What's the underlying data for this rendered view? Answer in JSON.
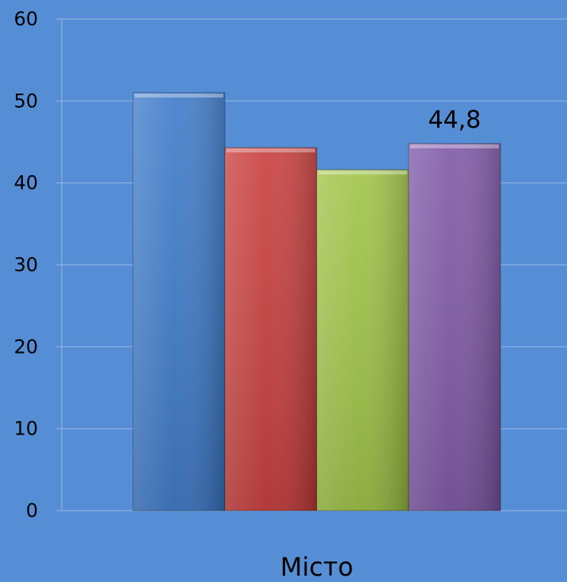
{
  "chart_data": {
    "type": "bar",
    "categories": [
      "Місто"
    ],
    "series": [
      {
        "values": [
          51
        ],
        "color": "#3a78c9"
      },
      {
        "values": [
          44.3
        ],
        "color": "#c73a39"
      },
      {
        "values": [
          41.6
        ],
        "color": "#9dc242"
      },
      {
        "values": [
          44.8
        ],
        "color": "#7c55a5"
      }
    ],
    "data_labels": [
      {
        "series_index": 3,
        "category_index": 0,
        "text": "44,8"
      }
    ],
    "y_ticks": [
      "0",
      "10",
      "20",
      "30",
      "40",
      "50",
      "60"
    ],
    "ylim": [
      0,
      60
    ],
    "grid": true,
    "legend": "none",
    "background_color": "#558ed5",
    "gridline_color": "#8fb3e0"
  }
}
